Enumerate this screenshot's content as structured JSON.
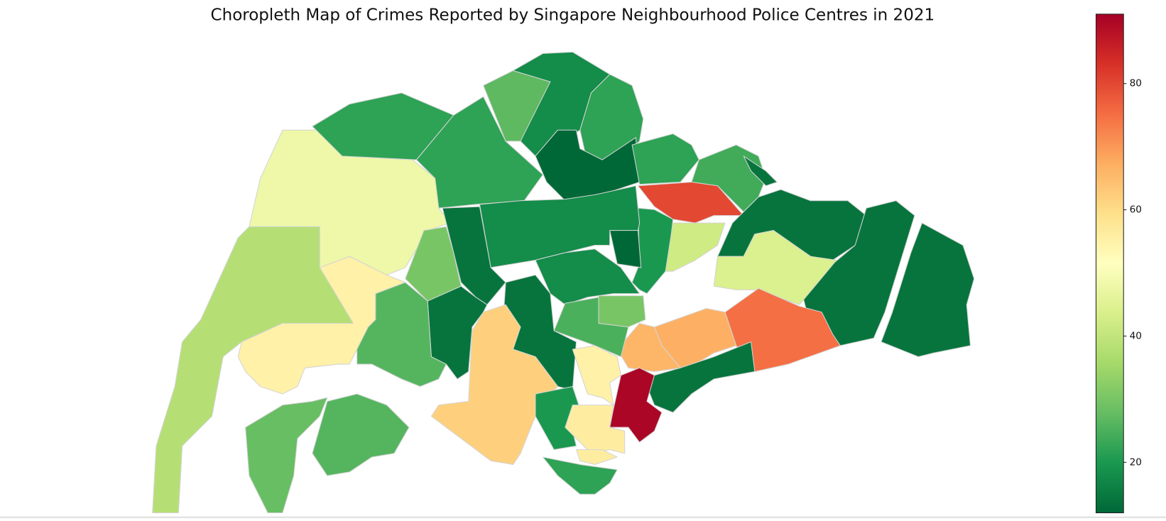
{
  "chart_data": {
    "type": "choropleth",
    "title": "Choropleth Map of Crimes Reported by Singapore Neighbourhood Police Centres in 2021",
    "colormap": "RdYlGn_r",
    "clim": [
      12,
      91
    ],
    "yticks": [
      20,
      40,
      60,
      80
    ],
    "values": [
      38,
      48,
      22,
      22,
      27,
      18,
      22,
      10,
      22,
      24,
      80,
      14,
      14,
      14,
      14,
      44,
      75,
      67,
      66,
      14,
      90,
      20,
      42,
      18,
      12,
      18,
      30,
      25,
      14,
      14,
      14,
      30,
      62,
      20,
      55,
      56,
      56,
      22,
      55,
      26,
      28,
      26
    ]
  }
}
